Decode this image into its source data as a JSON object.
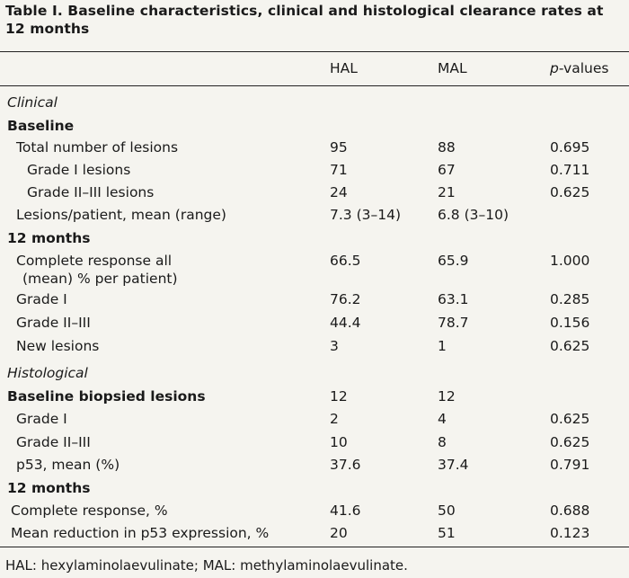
{
  "title": "Table I. Baseline characteristics, clinical and histological clearance rates at 12 months",
  "columns": [
    "HAL",
    "MAL",
    "values"
  ],
  "p_prefix": "p",
  "rows": [
    {
      "label": "Clinical",
      "hal": "",
      "mal": "",
      "p": "",
      "style": "italic"
    },
    {
      "label": "Baseline",
      "hal": "",
      "mal": "",
      "p": "",
      "style": "bold"
    },
    {
      "label": "Total number of lesions",
      "hal": "95",
      "mal": "88",
      "p": "0.695",
      "style": "ind1"
    },
    {
      "label": "Grade I lesions",
      "hal": "71",
      "mal": "67",
      "p": "0.711",
      "style": "ind2"
    },
    {
      "label": "Grade II–III lesions",
      "hal": "24",
      "mal": "21",
      "p": "0.625",
      "style": "ind2"
    },
    {
      "label": "Lesions/patient, mean (range)",
      "hal": "7.3 (3–14)",
      "mal": "6.8 (3–10)",
      "p": "",
      "style": "ind1"
    },
    {
      "label": "12 months",
      "hal": "",
      "mal": "",
      "p": "",
      "style": "bold"
    },
    {
      "label": "Complete response all",
      "label2": "(mean) % per patient)",
      "hal": "66.5",
      "mal": "65.9",
      "p": "1.000",
      "style": "ind1"
    },
    {
      "label": "Grade I",
      "hal": "76.2",
      "mal": "63.1",
      "p": "0.285",
      "style": "ind1"
    },
    {
      "label": "Grade II–III",
      "hal": "44.4",
      "mal": "78.7",
      "p": "0.156",
      "style": "ind1"
    },
    {
      "label": "New lesions",
      "hal": "3",
      "mal": "1",
      "p": "0.625",
      "style": "ind1"
    },
    {
      "label": "Histological",
      "hal": "",
      "mal": "",
      "p": "",
      "style": "italic"
    },
    {
      "label": "Baseline biopsied lesions",
      "hal": "12",
      "mal": "12",
      "p": "",
      "style": "bold"
    },
    {
      "label": "Grade I",
      "hal": "2",
      "mal": "4",
      "p": "0.625",
      "style": "ind1"
    },
    {
      "label": "Grade II–III",
      "hal": "10",
      "mal": "8",
      "p": "0.625",
      "style": "ind1"
    },
    {
      "label": "p53, mean (%)",
      "hal": "37.6",
      "mal": "37.4",
      "p": "0.791",
      "style": "ind1"
    },
    {
      "label": "12 months",
      "hal": "",
      "mal": "",
      "p": "",
      "style": "bold"
    },
    {
      "label": "Complete response, %",
      "hal": "41.6",
      "mal": "50",
      "p": "0.688",
      "style": "ind0"
    },
    {
      "label": "Mean reduction in p53 expression, %",
      "hal": "20",
      "mal": "51",
      "p": "0.123",
      "style": "ind0"
    }
  ],
  "footnote": "HAL: hexylaminolaevulinate; MAL: methylaminolaevulinate."
}
